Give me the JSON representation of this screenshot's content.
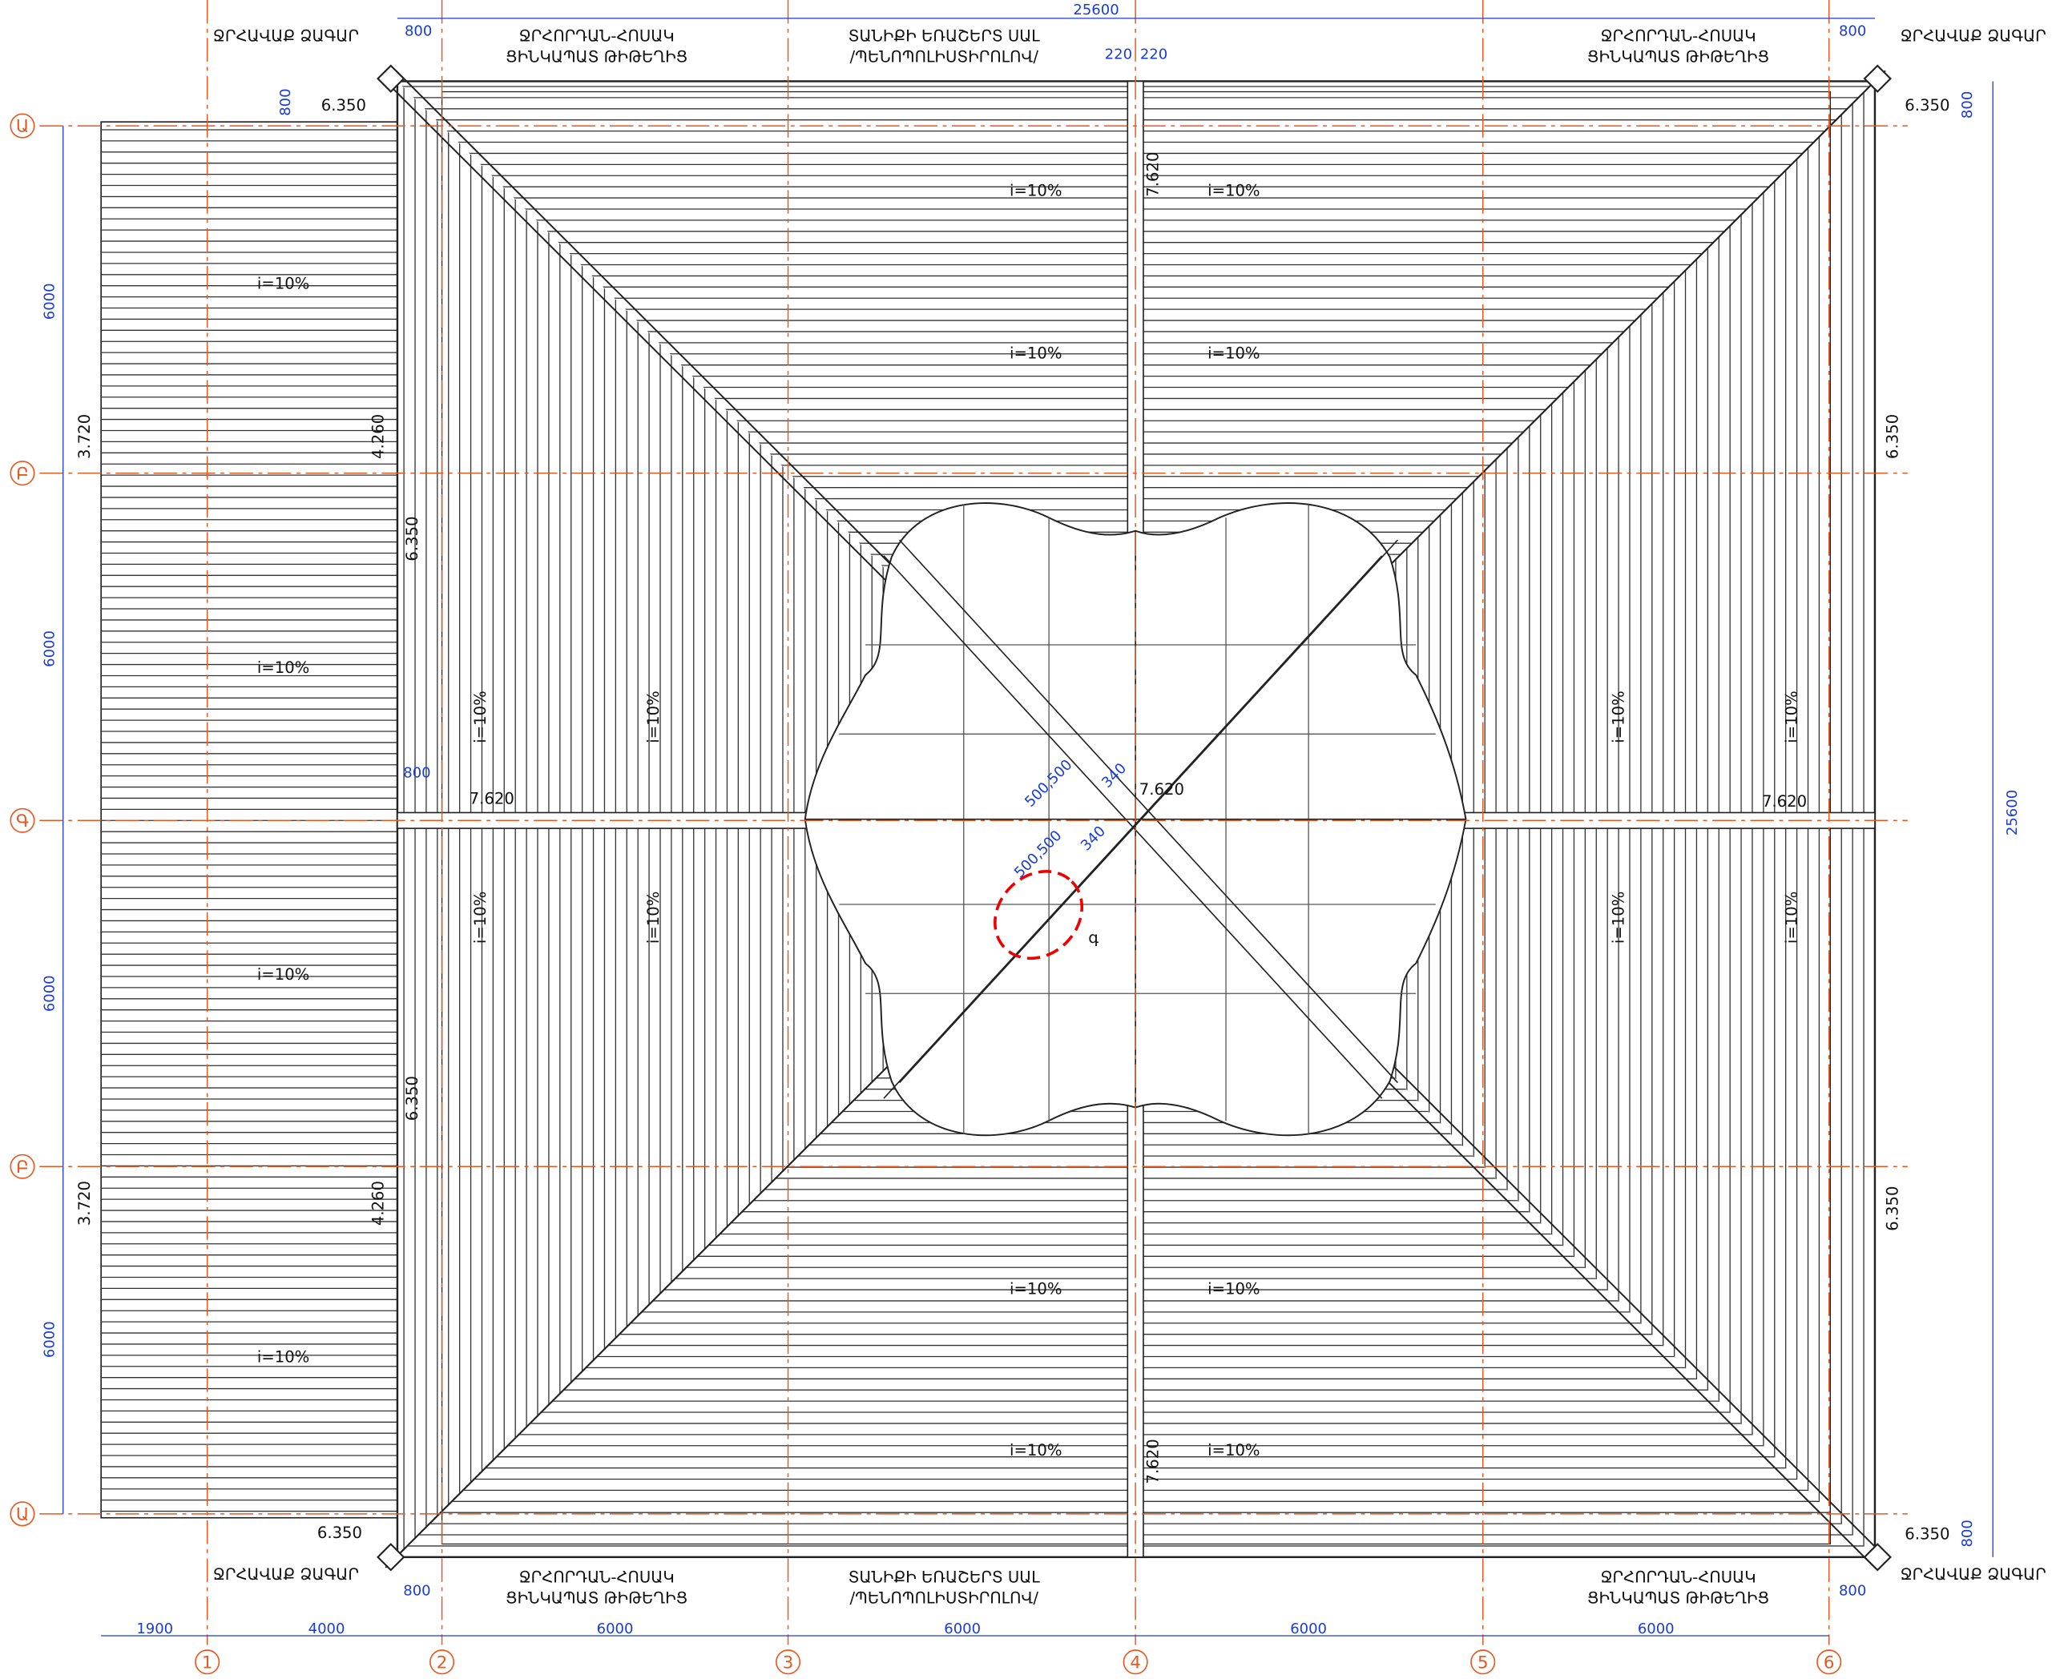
{
  "callouts": {
    "funnel": "ՋՐՀԱՎԱՔ ՁԱԳԱՐ",
    "gutter": [
      "ՋՐՀՈՐԴԱՆ-ՀՈՍԱԿ",
      "ՑԻՆԿԱՊԱՏ ԹԻԹԵՂԻՑ"
    ],
    "panel": [
      "ՏԱՆԻՔԻ ԵՌԱՇԵՐՏ ՍԱԼ",
      "/ՊԵՆՈՊՈԼԻՍՏԻՐՈԼՈՎ/"
    ]
  },
  "slope": "i=10%",
  "elevations": {
    "eave": "6.350",
    "ridge": "7.620",
    "low_eave": "3.720",
    "low_ridge": "4.260"
  },
  "dimensions": {
    "overall": "25600",
    "offset": "800",
    "ridge_gap": "220",
    "bay": "6000",
    "left_bay": "1900",
    "bay_1_2": "4000",
    "diag": "500,500",
    "diag_small": "340"
  },
  "axes": {
    "rows": [
      "Ա",
      "Բ",
      "Գ",
      "Բ",
      "Ա"
    ],
    "columns": [
      "1",
      "2",
      "3",
      "4",
      "5",
      "6"
    ]
  },
  "detail_mark": "գ"
}
